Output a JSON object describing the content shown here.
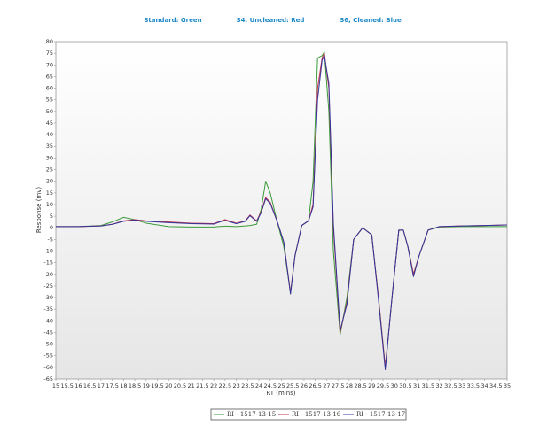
{
  "chart_data": {
    "type": "line",
    "header_labels": [
      "Standard: Green",
      "S4, Uncleaned: Red",
      "S6, Cleaned: Blue"
    ],
    "x_label": "RT (mins)",
    "y_label": "Response (mv)",
    "x": [
      15,
      16,
      17,
      17.5,
      18,
      18.5,
      19,
      20,
      21,
      22,
      22.2,
      22.5,
      23,
      23.4,
      23.6,
      23.9,
      24.1,
      24.3,
      24.5,
      24.8,
      25.1,
      25.4,
      25.6,
      25.9,
      26.2,
      26.4,
      26.6,
      26.8,
      26.9,
      27.1,
      27.3,
      27.6,
      27.9,
      28.2,
      28.6,
      29.0,
      29.3,
      29.6,
      29.9,
      30.2,
      30.4,
      30.6,
      30.85,
      31.1,
      31.5,
      32,
      33,
      34,
      35
    ],
    "series": [
      {
        "name": "RI - 1517-13-15",
        "color": "#3a9a3a",
        "values": [
          0.5,
          0.5,
          1,
          2.5,
          4.5,
          3.5,
          2,
          0.5,
          0.3,
          0.3,
          0.5,
          0.7,
          0.5,
          0.8,
          1,
          1.5,
          8,
          20,
          15,
          3,
          -8,
          -28,
          -12,
          1,
          3,
          20,
          73,
          74,
          75.5,
          50,
          -10,
          -46,
          -30,
          -5,
          0,
          -3,
          -30,
          -60,
          -30,
          -1,
          -1,
          -8,
          -20,
          -12,
          -1,
          0.3,
          0.5,
          0.5,
          0.5
        ]
      },
      {
        "name": "RI - 1517-13-16",
        "color": "#c8304a",
        "values": [
          0.5,
          0.5,
          0.8,
          1.5,
          3,
          3.5,
          3,
          2.5,
          2,
          1.8,
          2.5,
          3.5,
          2,
          3,
          5.5,
          3,
          7,
          13,
          11,
          3,
          -6,
          -28,
          -12,
          1,
          3,
          10,
          60,
          73,
          75,
          60,
          0,
          -45,
          -32,
          -5,
          0,
          -3,
          -30,
          -60,
          -30,
          -1,
          -1,
          -8,
          -20,
          -12,
          -1,
          0.5,
          0.8,
          1,
          1.2
        ]
      },
      {
        "name": "RI - 1517-13-17",
        "color": "#33339a",
        "values": [
          0.5,
          0.5,
          0.8,
          1.5,
          2.8,
          3.3,
          2.8,
          2.2,
          1.8,
          1.6,
          2.3,
          3.2,
          1.8,
          2.8,
          5.2,
          2.8,
          6.5,
          12.5,
          10.5,
          3,
          -6,
          -28.5,
          -12,
          1,
          3,
          9,
          55,
          72,
          74,
          62,
          2,
          -44,
          -33,
          -5,
          0,
          -3,
          -31,
          -61,
          -30,
          -1,
          -1,
          -8,
          -21,
          -12,
          -1,
          0.5,
          0.8,
          1,
          1.2
        ]
      }
    ],
    "xlim": [
      15,
      35
    ],
    "ylim": [
      -65,
      80
    ],
    "xticks": [
      15,
      15.5,
      16,
      16.5,
      17,
      17.5,
      18,
      18.5,
      19,
      19.5,
      20,
      20.5,
      21,
      21.5,
      22,
      22.5,
      23,
      23.5,
      24,
      24.5,
      25,
      25.5,
      26,
      26.5,
      27,
      27.5,
      28,
      28.5,
      29,
      29.5,
      30,
      30.5,
      31,
      31.5,
      32,
      32.5,
      33,
      33.5,
      34,
      34.5,
      35
    ],
    "yticks": [
      -65,
      -60,
      -55,
      -50,
      -45,
      -40,
      -35,
      -30,
      -25,
      -20,
      -15,
      -10,
      -5,
      0,
      5,
      10,
      15,
      20,
      25,
      30,
      35,
      40,
      45,
      50,
      55,
      60,
      65,
      70,
      75,
      80
    ],
    "grid": false
  }
}
